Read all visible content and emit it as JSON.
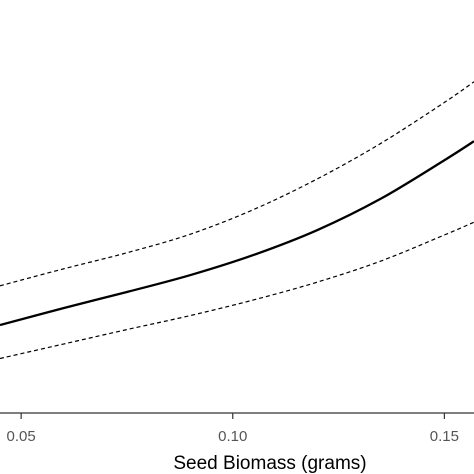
{
  "chart_data": {
    "type": "line",
    "title": "",
    "xlabel": "Seed Biomass (grams)",
    "ylabel": "",
    "xlim": [
      0.045,
      0.157
    ],
    "ylim": [
      0,
      1
    ],
    "x_ticks": [
      "0.05",
      "0.10",
      "0.15"
    ],
    "x_tick_values": [
      0.05,
      0.1,
      0.15
    ],
    "grid": false,
    "series": [
      {
        "role": "fit",
        "style": "solid",
        "color": "#000000",
        "x": [
          0.045,
          0.06,
          0.075,
          0.09,
          0.105,
          0.12,
          0.135,
          0.15,
          0.157
        ],
        "y": [
          0.213,
          0.254,
          0.293,
          0.334,
          0.383,
          0.443,
          0.519,
          0.612,
          0.658
        ]
      },
      {
        "role": "upper-bound",
        "style": "dashed",
        "color": "#000000",
        "x": [
          0.045,
          0.06,
          0.075,
          0.09,
          0.105,
          0.12,
          0.135,
          0.15,
          0.157
        ],
        "y": [
          0.308,
          0.349,
          0.388,
          0.433,
          0.493,
          0.567,
          0.653,
          0.752,
          0.802
        ]
      },
      {
        "role": "lower-bound",
        "style": "dashed",
        "color": "#000000",
        "x": [
          0.045,
          0.06,
          0.075,
          0.09,
          0.105,
          0.12,
          0.135,
          0.15,
          0.157
        ],
        "y": [
          0.132,
          0.167,
          0.202,
          0.236,
          0.274,
          0.317,
          0.368,
          0.431,
          0.462
        ]
      }
    ]
  }
}
